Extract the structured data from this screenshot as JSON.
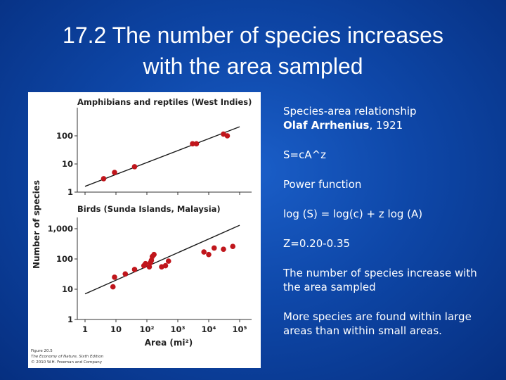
{
  "title": {
    "line1": "17.2 The number of species increases",
    "line2": "with the area sampled"
  },
  "notes": {
    "intro_line1": "Species-area relationship",
    "author": "Olaf Arrhenius",
    "year_suffix": ", 1921",
    "formula": "S=cA^z",
    "function_type": "Power function",
    "log_form": "log (S) = log(c) + z log (A)",
    "z_range": "Z=0.20-0.35",
    "statement1": "The number of species increase with the area sampled",
    "statement2": "More species are found within large areas than within small areas."
  },
  "figure_caption": {
    "line1": "Figure 20.5",
    "line2": "The Economy of Nature, Sixth Edition",
    "line3": "© 2010 W.H. Freeman and Company"
  },
  "colors": {
    "point": "#c0161c",
    "line": "#1a1a1a"
  },
  "chart_data": [
    {
      "type": "scatter",
      "title": "Amphibians and reptiles (West Indies)",
      "ylabel": "Number of species",
      "xlabel": "Area (mi²)",
      "xscale": "log",
      "yscale": "log",
      "xlim": [
        1,
        100000
      ],
      "ylim": [
        1,
        300
      ],
      "yticks": [
        "1",
        "10",
        "100"
      ],
      "grid": false,
      "points": [
        {
          "x": 4,
          "y": 3
        },
        {
          "x": 9,
          "y": 5
        },
        {
          "x": 40,
          "y": 8
        },
        {
          "x": 3000,
          "y": 52
        },
        {
          "x": 4000,
          "y": 52
        },
        {
          "x": 30000,
          "y": 115
        },
        {
          "x": 40000,
          "y": 100
        }
      ],
      "fit_line": [
        {
          "x": 1,
          "y": 1.6
        },
        {
          "x": 100000,
          "y": 210
        }
      ]
    },
    {
      "type": "scatter",
      "title": "Birds (Sunda Islands, Malaysia)",
      "ylabel": "Number of species",
      "xlabel": "Area (mi²)",
      "xscale": "log",
      "yscale": "log",
      "xlim": [
        1,
        100000
      ],
      "ylim": [
        1,
        3000
      ],
      "yticks": [
        "1",
        "10",
        "100",
        "1,000"
      ],
      "xticks": [
        "1",
        "10",
        "10²",
        "10³",
        "10⁴",
        "10⁵"
      ],
      "grid": false,
      "points": [
        {
          "x": 8,
          "y": 12
        },
        {
          "x": 9,
          "y": 25
        },
        {
          "x": 20,
          "y": 32
        },
        {
          "x": 40,
          "y": 45
        },
        {
          "x": 80,
          "y": 60
        },
        {
          "x": 90,
          "y": 70
        },
        {
          "x": 120,
          "y": 55
        },
        {
          "x": 130,
          "y": 75
        },
        {
          "x": 140,
          "y": 90
        },
        {
          "x": 150,
          "y": 120
        },
        {
          "x": 170,
          "y": 140
        },
        {
          "x": 300,
          "y": 55
        },
        {
          "x": 400,
          "y": 60
        },
        {
          "x": 500,
          "y": 85
        },
        {
          "x": 7000,
          "y": 170
        },
        {
          "x": 10000,
          "y": 140
        },
        {
          "x": 15000,
          "y": 230
        },
        {
          "x": 30000,
          "y": 210
        },
        {
          "x": 60000,
          "y": 260
        }
      ],
      "fit_line": [
        {
          "x": 1,
          "y": 7
        },
        {
          "x": 100000,
          "y": 1300
        }
      ]
    }
  ]
}
